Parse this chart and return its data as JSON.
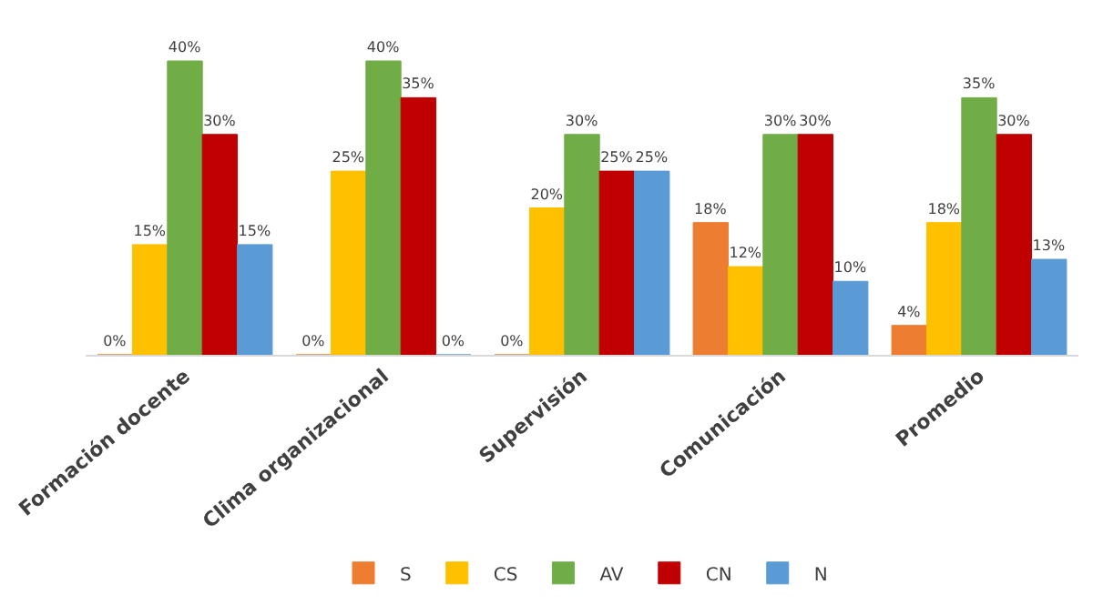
{
  "chart_data": {
    "type": "bar",
    "categories": [
      "Formación docente",
      "Clima organizacional",
      "Supervisión",
      "Comunicación",
      "Promedio"
    ],
    "series": [
      {
        "name": "S",
        "color": "#ed7d31",
        "values": [
          0,
          0,
          0,
          18,
          4
        ],
        "value_labels": [
          "0%",
          "0%",
          "0%",
          "18%",
          "4%"
        ]
      },
      {
        "name": "CS",
        "color": "#ffc000",
        "values": [
          15,
          25,
          20,
          12,
          18
        ],
        "value_labels": [
          "15%",
          "25%",
          "20%",
          "12%",
          "18%"
        ]
      },
      {
        "name": "AV",
        "color": "#70ad47",
        "values": [
          40,
          40,
          30,
          30,
          35
        ],
        "value_labels": [
          "40%",
          "40%",
          "30%",
          "30%",
          "35%"
        ]
      },
      {
        "name": "CN",
        "color": "#c00000",
        "values": [
          30,
          35,
          25,
          30,
          30
        ],
        "value_labels": [
          "30%",
          "35%",
          "25%",
          "30%",
          "30%"
        ]
      },
      {
        "name": "N",
        "color": "#5b9bd5",
        "values": [
          15,
          0,
          25,
          10,
          13
        ],
        "value_labels": [
          "15%",
          "0%",
          "25%",
          "10%",
          "13%"
        ]
      }
    ],
    "legend": "bottom"
  }
}
